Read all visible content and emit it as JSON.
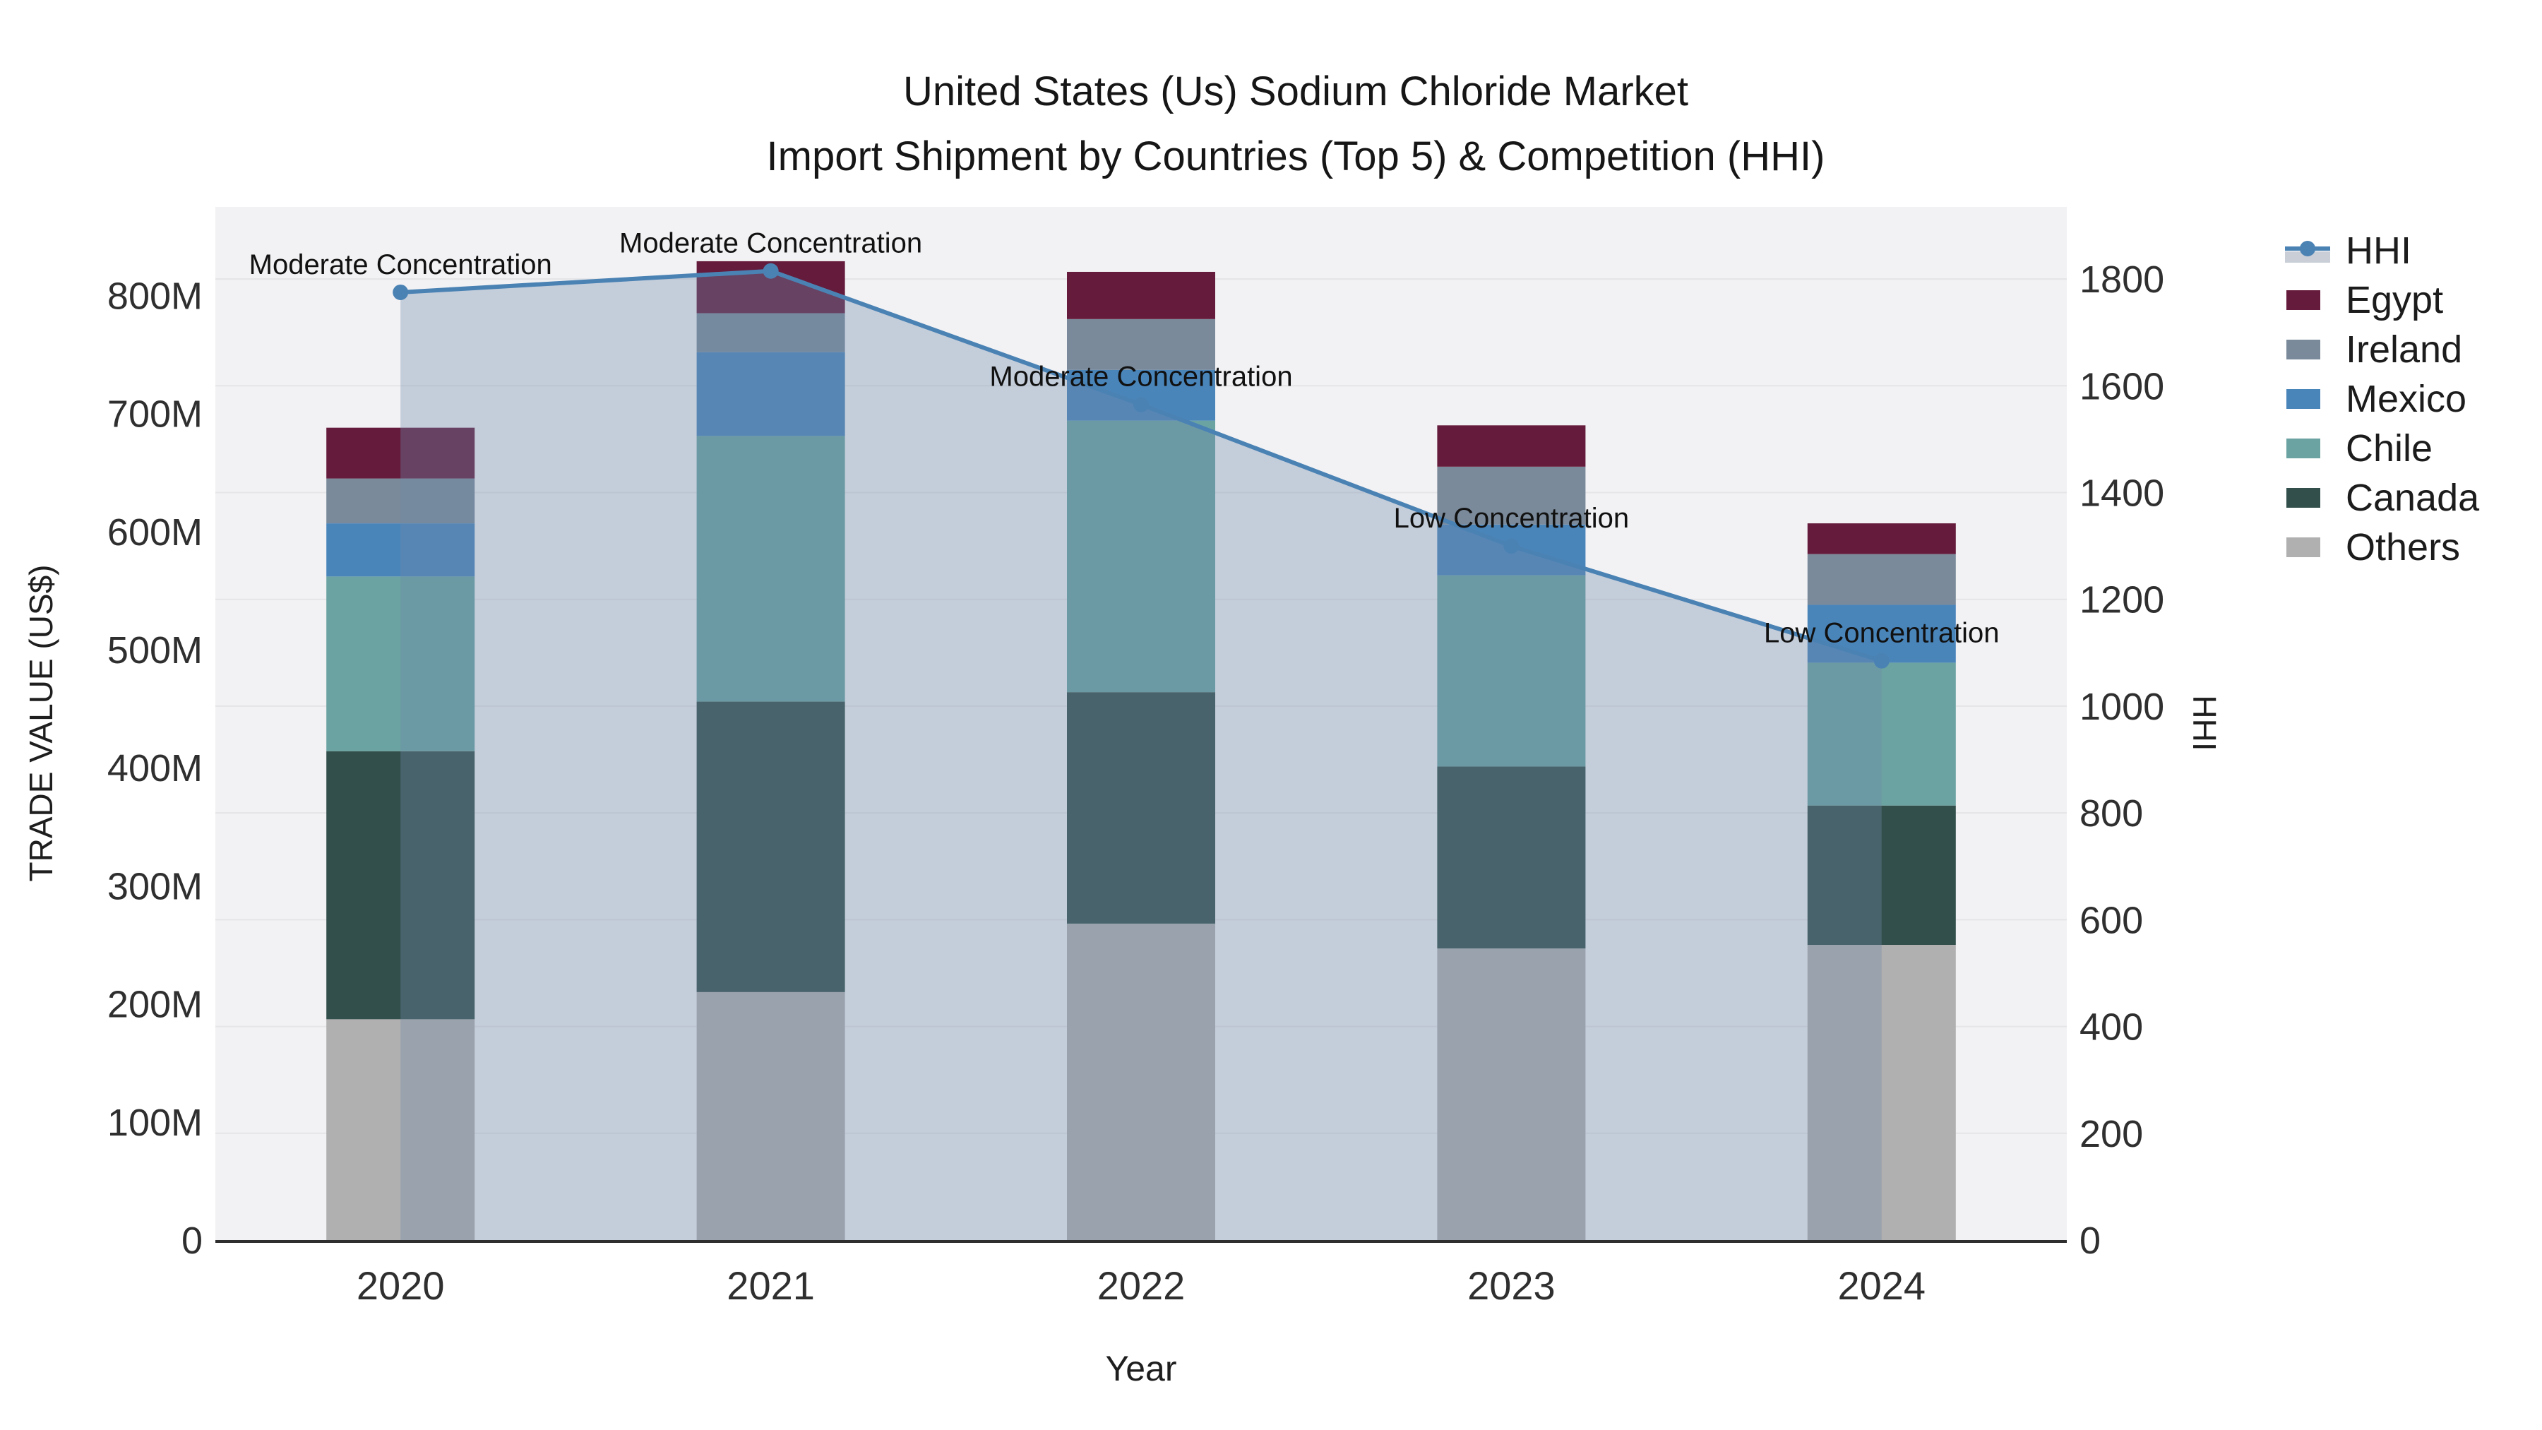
{
  "title": {
    "line1": "United States (Us) Sodium Chloride Market",
    "line2": "Import Shipment by Countries (Top 5) & Competition (HHI)"
  },
  "chart_data": {
    "type": "bar+line",
    "title": "United States (Us) Sodium Chloride Market Import Shipment by Countries (Top 5) & Competition (HHI)",
    "xlabel": "Year",
    "categories": [
      "2020",
      "2021",
      "2022",
      "2023",
      "2024"
    ],
    "bar_unit": "M US$",
    "series": [
      {
        "name": "Others",
        "color": "#b0b0b0",
        "values": [
          187,
          210,
          268,
          247,
          250
        ]
      },
      {
        "name": "Canada",
        "color": "#334f4b",
        "values": [
          227,
          246,
          196,
          154,
          118
        ]
      },
      {
        "name": "Chile",
        "color": "#6aa3a1",
        "values": [
          148,
          225,
          230,
          162,
          121
        ]
      },
      {
        "name": "Mexico",
        "color": "#4a85ba",
        "values": [
          45,
          71,
          43,
          43,
          49
        ]
      },
      {
        "name": "Ireland",
        "color": "#7a8a9a",
        "values": [
          38,
          33,
          43,
          49,
          43
        ]
      },
      {
        "name": "Egypt",
        "color": "#651c3c",
        "values": [
          43,
          44,
          40,
          35,
          26
        ]
      }
    ],
    "bar_totals": [
      688,
      829,
      820,
      690,
      607
    ],
    "hhi": {
      "name": "HHI",
      "line_color": "#4a82b4",
      "fill_color": "rgba(112,138,168,0.35)",
      "values": [
        1775,
        1815,
        1565,
        1300,
        1085
      ],
      "annotations": [
        "Moderate Concentration",
        "Moderate Concentration",
        "Moderate Concentration",
        "Low Concentration",
        "Low Concentration"
      ]
    },
    "y_left": {
      "title": "TRADE VALUE (US$)",
      "tick_values": [
        0,
        100,
        200,
        300,
        400,
        500,
        600,
        700,
        800
      ],
      "tick_labels": [
        "0",
        "100M",
        "200M",
        "300M",
        "400M",
        "500M",
        "600M",
        "700M",
        "800M"
      ],
      "range": [
        0,
        875
      ]
    },
    "y_right": {
      "title": "HHI",
      "tick_values": [
        0,
        200,
        400,
        600,
        800,
        1000,
        1200,
        1400,
        1600,
        1800
      ],
      "tick_labels": [
        "0",
        "200",
        "400",
        "600",
        "800",
        "1000",
        "1200",
        "1400",
        "1600",
        "1800"
      ],
      "range": [
        0,
        1935
      ]
    },
    "legend_position": "right",
    "grid": true
  },
  "legend": {
    "items": [
      {
        "label": "HHI",
        "type": "line"
      },
      {
        "label": "Egypt",
        "type": "swatch",
        "color": "#651c3c"
      },
      {
        "label": "Ireland",
        "type": "swatch",
        "color": "#7a8a9a"
      },
      {
        "label": "Mexico",
        "type": "swatch",
        "color": "#4a85ba"
      },
      {
        "label": "Chile",
        "type": "swatch",
        "color": "#6aa3a1"
      },
      {
        "label": "Canada",
        "type": "swatch",
        "color": "#334f4b"
      },
      {
        "label": "Others",
        "type": "swatch",
        "color": "#b0b0b0"
      }
    ]
  },
  "style": {
    "plot_bg": "#f2f2f4",
    "grid_color": "#e5e5e7",
    "axis_line_color": "#2e2e2e",
    "tick_color": "#2f2f2f",
    "annotation_color": "#111111"
  }
}
